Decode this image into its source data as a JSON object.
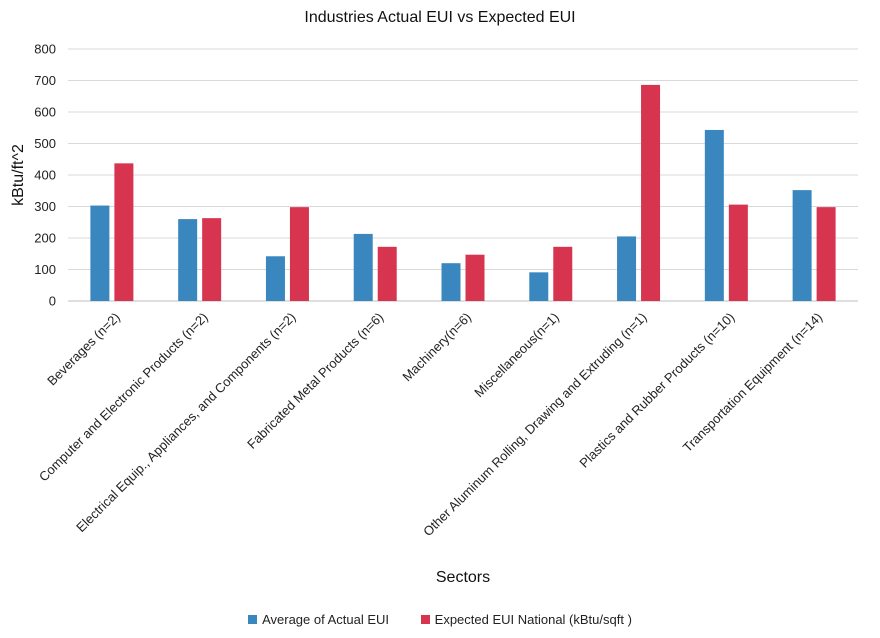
{
  "chart_data": {
    "type": "bar",
    "title": "Industries Actual EUI vs Expected EUI",
    "xlabel": "Sectors",
    "ylabel": "kBtu/ft^2",
    "ylim": [
      0,
      800
    ],
    "yticks": [
      0,
      100,
      200,
      300,
      400,
      500,
      600,
      700,
      800
    ],
    "grid": true,
    "legend_position": "bottom",
    "categories": [
      "Beverages (n=2)",
      "Computer and Electronic Products (n=2)",
      "Electrical Equip., Appliances, and Components (n=2)",
      "Fabricated Metal Products (n=6)",
      "Machinery(n=6)",
      "Miscellaneous(n=1)",
      "Other Aluminum Rolling, Drawing and Extruding (n=1)",
      "Plastics and Rubber Products (n=10)",
      "Transportation Equipment (n=14)"
    ],
    "series": [
      {
        "name": "Average of Actual EUI",
        "color": "#3a87bf",
        "values": [
          303,
          260,
          142,
          213,
          120,
          91,
          205,
          543,
          352
        ]
      },
      {
        "name": "Expected EUI National (kBtu/sqft )",
        "color": "#d6344f",
        "values": [
          437,
          263,
          298,
          172,
          147,
          172,
          686,
          306,
          298
        ]
      }
    ]
  }
}
